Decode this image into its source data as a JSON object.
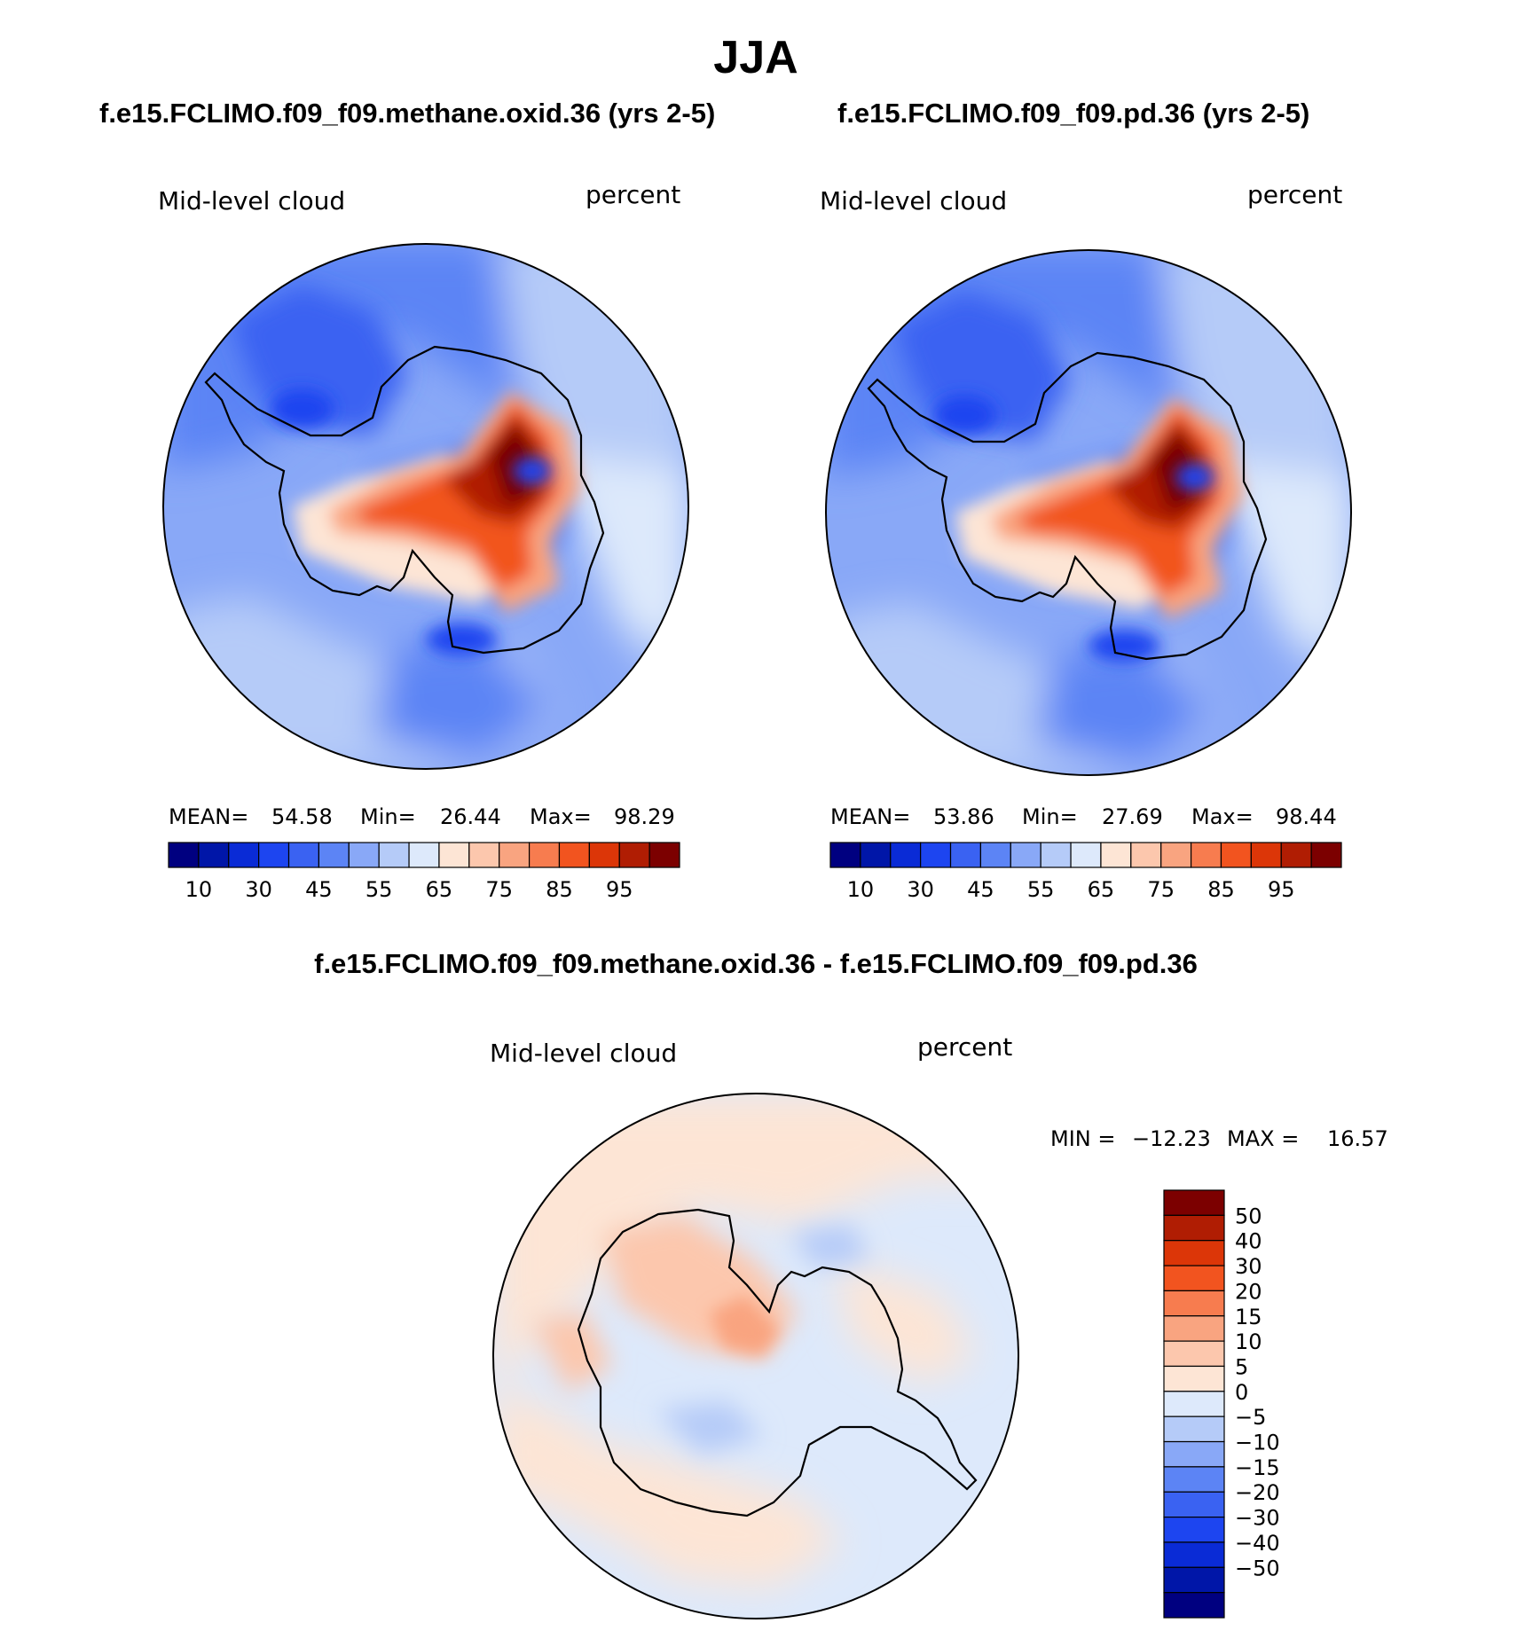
{
  "title": "JJA",
  "panels": [
    {
      "case_title": "f.e15.FCLIMO.f09_f09.methane.oxid.36 (yrs 2-5)",
      "variable": "Mid-level cloud",
      "units": "percent",
      "stats": {
        "mean_label": "MEAN=",
        "mean": "54.58",
        "min_label": "Min=",
        "min": "26.44",
        "max_label": "Max=",
        "max": "98.29"
      }
    },
    {
      "case_title": "f.e15.FCLIMO.f09_f09.pd.36 (yrs 2-5)",
      "variable": "Mid-level cloud",
      "units": "percent",
      "stats": {
        "mean_label": "MEAN=",
        "mean": "53.86",
        "min_label": "Min=",
        "min": "27.69",
        "max_label": "Max=",
        "max": "98.44"
      }
    }
  ],
  "abs_colorbar": {
    "colors": [
      "#000080",
      "#0016a8",
      "#0a2bd6",
      "#1d45f0",
      "#3a62f2",
      "#5c84f5",
      "#89a8f7",
      "#b5cbf8",
      "#dde9fb",
      "#fde5d5",
      "#fcc7ad",
      "#f9a480",
      "#f77c4f",
      "#f2541f",
      "#dc3608",
      "#b01d03",
      "#7c0000"
    ],
    "ticks": [
      "10",
      "30",
      "45",
      "55",
      "65",
      "75",
      "85",
      "95"
    ]
  },
  "diff_panel": {
    "title": "f.e15.FCLIMO.f09_f09.methane.oxid.36 - f.e15.FCLIMO.f09_f09.pd.36",
    "variable": "Mid-level cloud",
    "units": "percent",
    "stats": {
      "min_label": "MIN =",
      "min": "−12.23",
      "max_label": "MAX =",
      "max": "16.57"
    },
    "colorbar": {
      "colors": [
        "#7c0000",
        "#b01d03",
        "#dc3608",
        "#f2541f",
        "#f77c4f",
        "#f9a480",
        "#fcc7ad",
        "#fde5d5",
        "#dde9fb",
        "#b5cbf8",
        "#89a8f7",
        "#5c84f5",
        "#3a62f2",
        "#1d45f0",
        "#0a2bd6",
        "#0016a8",
        "#000080"
      ],
      "ticks": [
        "50",
        "40",
        "30",
        "20",
        "15",
        "10",
        "5",
        "0",
        "−5",
        "−10",
        "−15",
        "−20",
        "−30",
        "−40",
        "−50"
      ]
    }
  }
}
